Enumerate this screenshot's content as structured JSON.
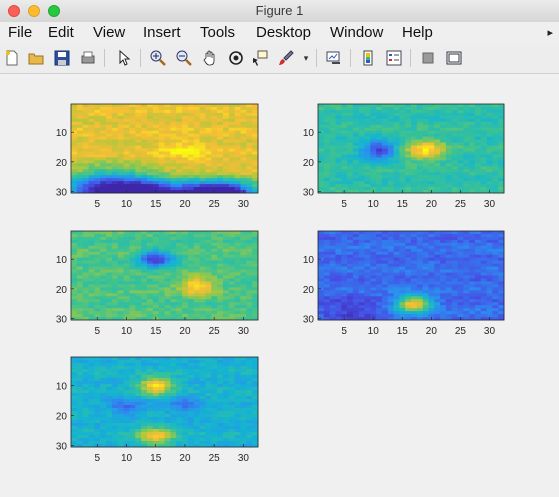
{
  "window": {
    "title": "Figure 1"
  },
  "menu": [
    "File",
    "Edit",
    "View",
    "Insert",
    "Tools",
    "Desktop",
    "Window",
    "Help"
  ],
  "toolbar": {
    "icons": [
      "new-figure-icon",
      "open-file-icon",
      "save-icon",
      "print-icon",
      "pointer-icon",
      "zoom-in-icon",
      "zoom-out-icon",
      "pan-icon",
      "rotate-3d-icon",
      "data-cursor-icon",
      "brush-icon",
      "dropdown-arrow-icon",
      "link-plot-icon",
      "colorbar-icon",
      "legend-icon",
      "hide-plot-tools-icon",
      "show-plot-tools-icon"
    ],
    "overflow_arrow": "▸"
  },
  "colors": {
    "parula_low": "#3e26a8",
    "parula_mid": "#20b2aa",
    "parula_high": "#f9fb0e",
    "axes_bg": "#ffffff",
    "figure_bg": "#f0f0f0"
  },
  "chart_data": [
    {
      "type": "heatmap",
      "description_key": "subplot-1",
      "x_ticks": [
        "5",
        "10",
        "15",
        "20",
        "25",
        "30"
      ],
      "y_ticks": [
        "10",
        "20",
        "30"
      ],
      "xlim": [
        0.5,
        32.5
      ],
      "ylim": [
        0.5,
        30.5
      ],
      "colormap": "parula",
      "base": 0.85,
      "blobs": [
        {
          "x": 20,
          "y": 16,
          "r": 4,
          "v": 0.12
        },
        {
          "x": 6,
          "y": 31,
          "r": 7,
          "v": -0.9
        },
        {
          "x": 14,
          "y": 32,
          "r": 6,
          "v": -0.9
        },
        {
          "x": 23,
          "y": 32,
          "r": 5,
          "v": -0.9
        },
        {
          "x": 28,
          "y": 32,
          "r": 5,
          "v": -0.9
        }
      ]
    },
    {
      "type": "heatmap",
      "description_key": "subplot-2",
      "x_ticks": [
        "5",
        "10",
        "15",
        "20",
        "25",
        "30"
      ],
      "y_ticks": [
        "10",
        "20",
        "30"
      ],
      "xlim": [
        0.5,
        32.5
      ],
      "ylim": [
        0.5,
        30.5
      ],
      "colormap": "parula",
      "base": 0.55,
      "blobs": [
        {
          "x": 11,
          "y": 16,
          "r": 3,
          "v": -0.45
        },
        {
          "x": 19,
          "y": 16,
          "r": 3.5,
          "v": 0.4
        }
      ]
    },
    {
      "type": "heatmap",
      "description_key": "subplot-3",
      "x_ticks": [
        "5",
        "10",
        "15",
        "20",
        "25",
        "30"
      ],
      "y_ticks": [
        "10",
        "20",
        "30"
      ],
      "xlim": [
        0.5,
        32.5
      ],
      "ylim": [
        0.5,
        30.5
      ],
      "colormap": "parula",
      "base": 0.62,
      "blobs": [
        {
          "x": 15,
          "y": 10,
          "r": 3,
          "v": -0.5
        },
        {
          "x": 22,
          "y": 19,
          "r": 3,
          "v": 0.35
        }
      ]
    },
    {
      "type": "heatmap",
      "description_key": "subplot-4",
      "x_ticks": [
        "5",
        "10",
        "15",
        "20",
        "25",
        "30"
      ],
      "y_ticks": [
        "10",
        "20",
        "30"
      ],
      "xlim": [
        0.5,
        32.5
      ],
      "ylim": [
        0.5,
        30.5
      ],
      "colormap": "parula",
      "base": 0.22,
      "blobs": [
        {
          "x": 17,
          "y": 25,
          "r": 3,
          "v": 0.7
        },
        {
          "x": 6,
          "y": 28,
          "r": 5,
          "v": -0.12
        }
      ]
    },
    {
      "type": "heatmap",
      "description_key": "subplot-5",
      "x_ticks": [
        "5",
        "10",
        "15",
        "20",
        "25",
        "30"
      ],
      "y_ticks": [
        "10",
        "20",
        "30"
      ],
      "xlim": [
        0.5,
        32.5
      ],
      "ylim": [
        0.5,
        30.5
      ],
      "colormap": "parula",
      "base": 0.45,
      "blobs": [
        {
          "x": 15,
          "y": 10,
          "r": 3,
          "v": 0.5
        },
        {
          "x": 15,
          "y": 27,
          "r": 3,
          "v": 0.45
        },
        {
          "x": 10,
          "y": 17,
          "r": 3,
          "v": -0.2
        },
        {
          "x": 20,
          "y": 17,
          "r": 3,
          "v": -0.2
        }
      ]
    }
  ]
}
